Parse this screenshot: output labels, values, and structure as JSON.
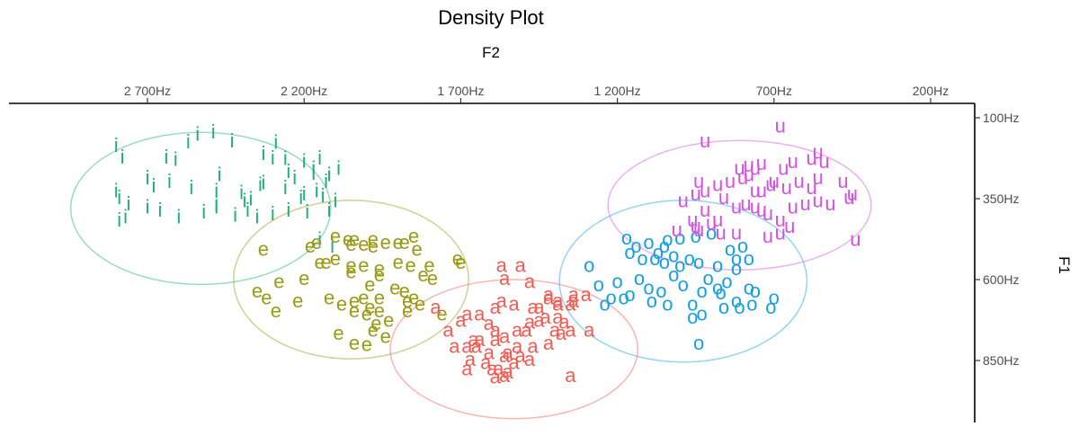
{
  "chart_data": {
    "type": "scatter",
    "title": "Density Plot",
    "xlabel": "F2",
    "ylabel": "F1",
    "x_axis_position": "top",
    "y_axis_position": "right",
    "x_reversed": true,
    "y_reversed": true,
    "xlim": [
      3100,
      100
    ],
    "ylim": [
      1000,
      100
    ],
    "x_ticks": [
      2700,
      2200,
      1700,
      1200,
      700,
      200
    ],
    "x_tick_labels": [
      "2 700Hz",
      "2 200Hz",
      "1 700Hz",
      "1 200Hz",
      "700Hz",
      "200Hz"
    ],
    "y_ticks": [
      100,
      350,
      600,
      850
    ],
    "y_tick_labels": [
      "100Hz",
      "350Hz",
      "600Hz",
      "850Hz"
    ],
    "grid": false,
    "legend": "none",
    "series": [
      {
        "name": "i",
        "color": "#1db07a",
        "ellipse": {
          "cx": 2530,
          "cy": 380,
          "rx": 415,
          "ry": 235
        },
        "points": [
          [
            2610,
            232
          ],
          [
            2570,
            178
          ],
          [
            2540,
            155
          ],
          [
            2490,
            148
          ],
          [
            2430,
            175
          ],
          [
            2800,
            190
          ],
          [
            2780,
            225
          ],
          [
            2700,
            290
          ],
          [
            2630,
            300
          ],
          [
            2680,
            315
          ],
          [
            2560,
            320
          ],
          [
            2480,
            330
          ],
          [
            2400,
            335
          ],
          [
            2370,
            355
          ],
          [
            2390,
            360
          ],
          [
            2340,
            310
          ],
          [
            2330,
            305
          ],
          [
            2300,
            228
          ],
          [
            2290,
            180
          ],
          [
            2260,
            230
          ],
          [
            2250,
            270
          ],
          [
            2200,
            238
          ],
          [
            2170,
            260
          ],
          [
            2150,
            228
          ],
          [
            2170,
            275
          ],
          [
            2160,
            330
          ],
          [
            2140,
            345
          ],
          [
            2130,
            300
          ],
          [
            2120,
            280
          ],
          [
            2230,
            290
          ],
          [
            2260,
            320
          ],
          [
            2210,
            350
          ],
          [
            2200,
            340
          ],
          [
            2100,
            360
          ],
          [
            2120,
            390
          ],
          [
            2190,
            395
          ],
          [
            2250,
            390
          ],
          [
            2300,
            400
          ],
          [
            2350,
            410
          ],
          [
            2420,
            405
          ],
          [
            2480,
            380
          ],
          [
            2520,
            395
          ],
          [
            2600,
            410
          ],
          [
            2660,
            390
          ],
          [
            2700,
            380
          ],
          [
            2760,
            370
          ],
          [
            2790,
            350
          ],
          [
            2800,
            330
          ],
          [
            2790,
            420
          ],
          [
            2770,
            410
          ],
          [
            2480,
            370
          ],
          [
            2470,
            280
          ],
          [
            2640,
            225
          ],
          [
            2380,
            390
          ],
          [
            2090,
            260
          ],
          [
            2330,
            215
          ],
          [
            2110,
            500
          ],
          [
            2150,
            480
          ]
        ]
      },
      {
        "name": "e",
        "color": "#9a9a13",
        "ellipse": {
          "cx": 2050,
          "cy": 600,
          "rx": 375,
          "ry": 245
        },
        "points": [
          [
            2330,
            510
          ],
          [
            2100,
            470
          ],
          [
            2040,
            480
          ],
          [
            1980,
            480
          ],
          [
            1940,
            490
          ],
          [
            1980,
            500
          ],
          [
            2010,
            495
          ],
          [
            2060,
            480
          ],
          [
            2160,
            490
          ],
          [
            2180,
            500
          ],
          [
            1900,
            490
          ],
          [
            1850,
            470
          ],
          [
            1840,
            510
          ],
          [
            1880,
            490
          ],
          [
            2050,
            495
          ],
          [
            1710,
            540
          ],
          [
            1700,
            550
          ],
          [
            1900,
            550
          ],
          [
            1960,
            570
          ],
          [
            2010,
            560
          ],
          [
            2050,
            560
          ],
          [
            1960,
            590
          ],
          [
            2050,
            580
          ],
          [
            2100,
            540
          ],
          [
            2130,
            550
          ],
          [
            2150,
            550
          ],
          [
            1860,
            560
          ],
          [
            1800,
            560
          ],
          [
            1790,
            600
          ],
          [
            1820,
            590
          ],
          [
            1990,
            620
          ],
          [
            1910,
            630
          ],
          [
            1880,
            640
          ],
          [
            1850,
            660
          ],
          [
            1870,
            670
          ],
          [
            1960,
            660
          ],
          [
            2010,
            660
          ],
          [
            2040,
            670
          ],
          [
            2080,
            680
          ],
          [
            2120,
            660
          ],
          [
            2200,
            600
          ],
          [
            2280,
            610
          ],
          [
            2350,
            640
          ],
          [
            2320,
            660
          ],
          [
            2220,
            670
          ],
          [
            2290,
            700
          ],
          [
            1990,
            690
          ],
          [
            2040,
            700
          ],
          [
            1960,
            700
          ],
          [
            2000,
            710
          ],
          [
            1930,
            730
          ],
          [
            1970,
            740
          ],
          [
            1980,
            760
          ],
          [
            2090,
            770
          ],
          [
            2040,
            800
          ],
          [
            2000,
            805
          ],
          [
            1940,
            780
          ],
          [
            1870,
            700
          ],
          [
            1830,
            680
          ],
          [
            1760,
            710
          ]
        ]
      },
      {
        "name": "a",
        "color": "#f25c54",
        "ellipse": {
          "cx": 1530,
          "cy": 815,
          "rx": 395,
          "ry": 215
        },
        "points": [
          [
            1570,
            560
          ],
          [
            1510,
            560
          ],
          [
            1560,
            600
          ],
          [
            1480,
            610
          ],
          [
            1420,
            650
          ],
          [
            1420,
            660
          ],
          [
            1390,
            670
          ],
          [
            1390,
            680
          ],
          [
            1450,
            690
          ],
          [
            1470,
            690
          ],
          [
            1530,
            680
          ],
          [
            1570,
            670
          ],
          [
            1590,
            690
          ],
          [
            1640,
            710
          ],
          [
            1680,
            710
          ],
          [
            1700,
            730
          ],
          [
            1740,
            760
          ],
          [
            1610,
            740
          ],
          [
            1590,
            760
          ],
          [
            1560,
            780
          ],
          [
            1520,
            760
          ],
          [
            1490,
            760
          ],
          [
            1430,
            720
          ],
          [
            1450,
            730
          ],
          [
            1480,
            735
          ],
          [
            1590,
            790
          ],
          [
            1640,
            790
          ],
          [
            1660,
            790
          ],
          [
            1650,
            810
          ],
          [
            1680,
            810
          ],
          [
            1610,
            830
          ],
          [
            1550,
            830
          ],
          [
            1510,
            840
          ],
          [
            1480,
            850
          ],
          [
            1470,
            810
          ],
          [
            1420,
            800
          ],
          [
            1400,
            760
          ],
          [
            1380,
            770
          ],
          [
            1390,
            720
          ],
          [
            1370,
            735
          ],
          [
            1350,
            760
          ],
          [
            1290,
            760
          ],
          [
            1350,
            680
          ],
          [
            1340,
            650
          ],
          [
            1300,
            650
          ],
          [
            1340,
            670
          ],
          [
            1520,
            810
          ],
          [
            1560,
            840
          ],
          [
            1600,
            880
          ],
          [
            1550,
            890
          ],
          [
            1530,
            860
          ],
          [
            1560,
            900
          ],
          [
            1590,
            905
          ],
          [
            1580,
            880
          ],
          [
            1620,
            860
          ],
          [
            1680,
            880
          ],
          [
            1670,
            850
          ],
          [
            1350,
            900
          ],
          [
            1780,
            690
          ],
          [
            1720,
            810
          ]
        ]
      },
      {
        "name": "o",
        "color": "#169fe6",
        "ellipse": {
          "cx": 990,
          "cy": 605,
          "rx": 395,
          "ry": 250
        },
        "points": [
          [
            1290,
            560
          ],
          [
            1170,
            475
          ],
          [
            1140,
            500
          ],
          [
            1100,
            490
          ],
          [
            1070,
            520
          ],
          [
            1000,
            475
          ],
          [
            1040,
            480
          ],
          [
            950,
            470
          ],
          [
            900,
            460
          ],
          [
            840,
            510
          ],
          [
            800,
            500
          ],
          [
            1160,
            520
          ],
          [
            1120,
            540
          ],
          [
            1080,
            540
          ],
          [
            1050,
            550
          ],
          [
            1020,
            530
          ],
          [
            970,
            540
          ],
          [
            940,
            550
          ],
          [
            880,
            560
          ],
          [
            820,
            570
          ],
          [
            1130,
            600
          ],
          [
            1100,
            630
          ],
          [
            1060,
            640
          ],
          [
            1020,
            590
          ],
          [
            930,
            640
          ],
          [
            910,
            600
          ],
          [
            880,
            630
          ],
          [
            870,
            645
          ],
          [
            850,
            610
          ],
          [
            780,
            630
          ],
          [
            760,
            640
          ],
          [
            1200,
            610
          ],
          [
            1180,
            660
          ],
          [
            1090,
            670
          ],
          [
            1040,
            680
          ],
          [
            960,
            680
          ],
          [
            860,
            690
          ],
          [
            810,
            690
          ],
          [
            820,
            670
          ],
          [
            770,
            680
          ],
          [
            700,
            660
          ],
          [
            710,
            690
          ],
          [
            1220,
            660
          ],
          [
            1260,
            620
          ],
          [
            1240,
            680
          ],
          [
            1160,
            650
          ],
          [
            960,
            720
          ],
          [
            940,
            800
          ],
          [
            930,
            710
          ],
          [
            990,
            620
          ],
          [
            1000,
            560
          ],
          [
            1050,
            500
          ],
          [
            780,
            540
          ],
          [
            820,
            540
          ]
        ]
      },
      {
        "name": "u",
        "color": "#d74fe4",
        "ellipse": {
          "cx": 810,
          "cy": 370,
          "rx": 420,
          "ry": 200
        },
        "points": [
          [
            920,
            175
          ],
          [
            680,
            130
          ],
          [
            640,
            240
          ],
          [
            670,
            260
          ],
          [
            740,
            245
          ],
          [
            760,
            260
          ],
          [
            780,
            250
          ],
          [
            810,
            260
          ],
          [
            540,
            240
          ],
          [
            560,
            210
          ],
          [
            580,
            230
          ],
          [
            480,
            300
          ],
          [
            450,
            340
          ],
          [
            460,
            350
          ],
          [
            520,
            370
          ],
          [
            560,
            360
          ],
          [
            600,
            370
          ],
          [
            640,
            380
          ],
          [
            680,
            420
          ],
          [
            720,
            400
          ],
          [
            740,
            390
          ],
          [
            760,
            380
          ],
          [
            790,
            370
          ],
          [
            820,
            380
          ],
          [
            860,
            350
          ],
          [
            920,
            330
          ],
          [
            950,
            340
          ],
          [
            940,
            300
          ],
          [
            880,
            310
          ],
          [
            840,
            300
          ],
          [
            800,
            290
          ],
          [
            780,
            280
          ],
          [
            710,
            310
          ],
          [
            700,
            300
          ],
          [
            740,
            330
          ],
          [
            660,
            320
          ],
          [
            620,
            300
          ],
          [
            580,
            320
          ],
          [
            560,
            290
          ],
          [
            990,
            360
          ],
          [
            960,
            420
          ],
          [
            950,
            440
          ],
          [
            900,
            430
          ],
          [
            880,
            420
          ],
          [
            920,
            390
          ],
          [
            870,
            460
          ],
          [
            680,
            460
          ],
          [
            650,
            440
          ],
          [
            720,
            470
          ],
          [
            1010,
            450
          ],
          [
            440,
            480
          ],
          [
            820,
            460
          ],
          [
            940,
            450
          ],
          [
            760,
            330
          ]
        ]
      }
    ]
  }
}
